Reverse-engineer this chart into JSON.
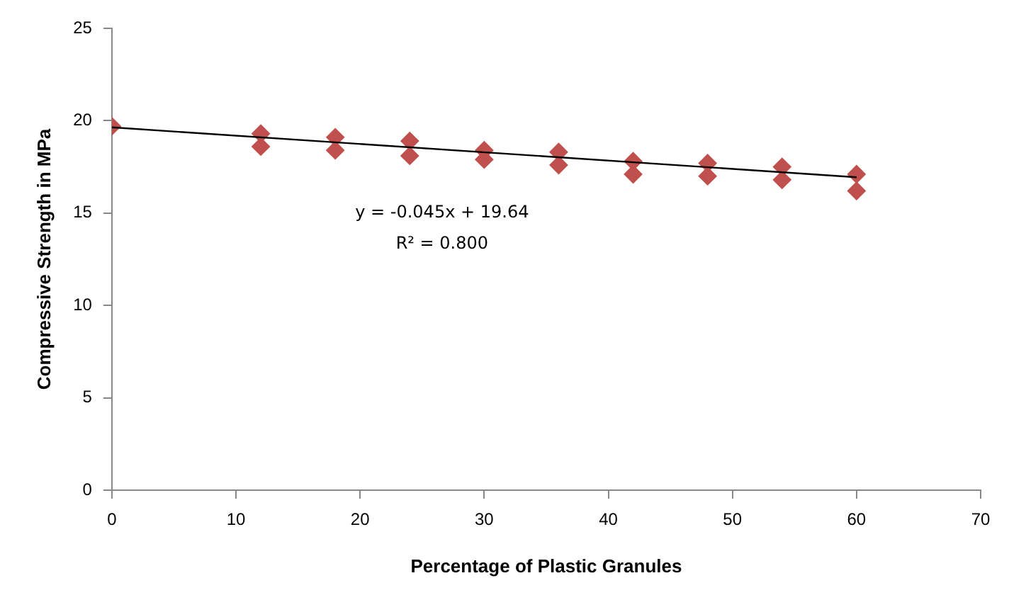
{
  "chart_data": {
    "type": "scatter",
    "xlabel": "Percentage of Plastic Granules",
    "ylabel": "Compressive Strength in MPa",
    "xlim": [
      0,
      70
    ],
    "xticks": [
      0,
      10,
      20,
      30,
      40,
      50,
      60,
      70
    ],
    "ylim": [
      0,
      25
    ],
    "yticks": [
      0,
      5,
      10,
      15,
      20,
      25
    ],
    "grid": false,
    "legend": false,
    "marker": "diamond",
    "series": [
      {
        "color": "#c0504d",
        "x": [
          0,
          12,
          12,
          18,
          18,
          24,
          24,
          30,
          30,
          36,
          36,
          42,
          42,
          48,
          48,
          54,
          54,
          60,
          60
        ],
        "values": [
          19.7,
          19.3,
          18.6,
          19.1,
          18.4,
          18.9,
          18.1,
          18.4,
          17.9,
          18.3,
          17.6,
          17.8,
          17.1,
          17.7,
          17.0,
          17.5,
          16.8,
          17.1,
          16.2
        ]
      },
      {
        "type": "line",
        "marker": "none",
        "color": "#000000",
        "x": [
          0,
          60
        ],
        "values": [
          19.64,
          16.94
        ]
      }
    ],
    "annotations": [
      "y = -0.045x + 19.64",
      "R² = 0.800"
    ]
  }
}
